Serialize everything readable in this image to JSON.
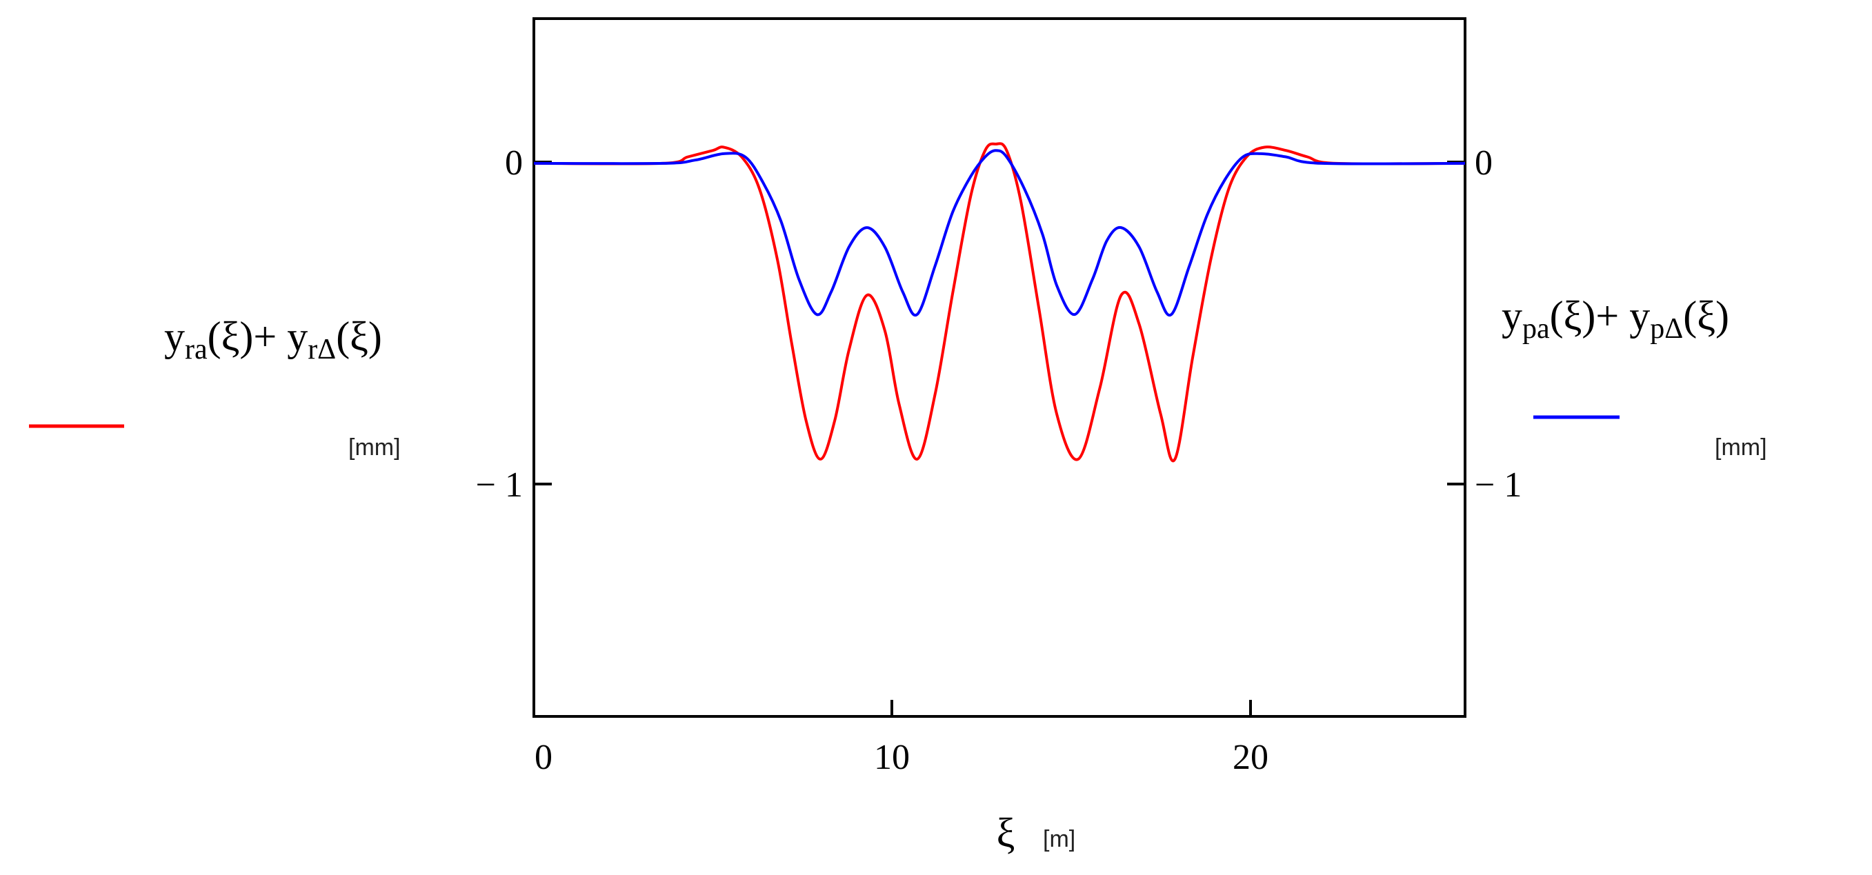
{
  "chart_data": {
    "type": "line",
    "x_unit": "[m]",
    "x_symbol": "ξ",
    "xlim": [
      0,
      26
    ],
    "ylim": [
      -1.72,
      0.45
    ],
    "x_ticks": [
      0,
      10,
      20
    ],
    "y_ticks": [
      0,
      -1
    ],
    "x_tick_labels": [
      "0",
      "10",
      "20"
    ],
    "y_tick_labels_left": [
      "0",
      "− 1"
    ],
    "y_tick_labels_right": [
      "0",
      "− 1"
    ],
    "grid": false,
    "legend_left": {
      "expr_parts": [
        "y",
        "ra",
        "(ξ)+ y",
        "rΔ",
        "(ξ)"
      ],
      "unit": "[mm]",
      "color": "#ff0000"
    },
    "legend_right": {
      "expr_parts": [
        "y",
        "pa",
        "(ξ)+  y",
        "pΔ",
        "(ξ)"
      ],
      "unit": "[mm]",
      "color": "#0000ff"
    },
    "series": [
      {
        "color": "#ff0000",
        "x": [
          0,
          3.6,
          4.3,
          5.0,
          5.3,
          5.8,
          6.3,
          6.8,
          7.2,
          7.6,
          8.0,
          8.4,
          8.8,
          9.3,
          9.8,
          10.2,
          10.7,
          11.2,
          11.7,
          12.2,
          12.6,
          12.9,
          13.2,
          13.6,
          14.1,
          14.6,
          15.2,
          15.8,
          16.4,
          16.9,
          17.5,
          17.9,
          18.4,
          18.9,
          19.4,
          19.9,
          20.4,
          21.0,
          21.6,
          22.4,
          26
        ],
        "y": [
          0,
          0,
          0.02,
          0.04,
          0.05,
          0.02,
          -0.08,
          -0.3,
          -0.56,
          -0.8,
          -0.92,
          -0.8,
          -0.58,
          -0.41,
          -0.52,
          -0.75,
          -0.92,
          -0.72,
          -0.4,
          -0.1,
          0.04,
          0.06,
          0.04,
          -0.12,
          -0.45,
          -0.78,
          -0.92,
          -0.7,
          -0.41,
          -0.5,
          -0.78,
          -0.92,
          -0.6,
          -0.3,
          -0.08,
          0.02,
          0.05,
          0.04,
          0.02,
          0,
          0
        ]
      },
      {
        "color": "#0000ff",
        "x": [
          0,
          3.6,
          4.5,
          5.3,
          5.9,
          6.4,
          6.9,
          7.4,
          7.9,
          8.3,
          8.8,
          9.3,
          9.8,
          10.3,
          10.7,
          11.2,
          11.7,
          12.2,
          12.6,
          12.9,
          13.2,
          13.7,
          14.2,
          14.6,
          15.1,
          15.6,
          16.0,
          16.4,
          16.9,
          17.4,
          17.8,
          18.3,
          18.8,
          19.3,
          19.8,
          20.3,
          21.0,
          22.0,
          26
        ],
        "y": [
          0,
          0,
          0.01,
          0.03,
          0.02,
          -0.06,
          -0.18,
          -0.36,
          -0.47,
          -0.4,
          -0.26,
          -0.2,
          -0.26,
          -0.4,
          -0.47,
          -0.32,
          -0.15,
          -0.04,
          0.02,
          0.04,
          0.02,
          -0.08,
          -0.22,
          -0.38,
          -0.47,
          -0.36,
          -0.24,
          -0.2,
          -0.26,
          -0.4,
          -0.47,
          -0.32,
          -0.16,
          -0.05,
          0.02,
          0.03,
          0.02,
          0,
          0
        ]
      }
    ]
  }
}
